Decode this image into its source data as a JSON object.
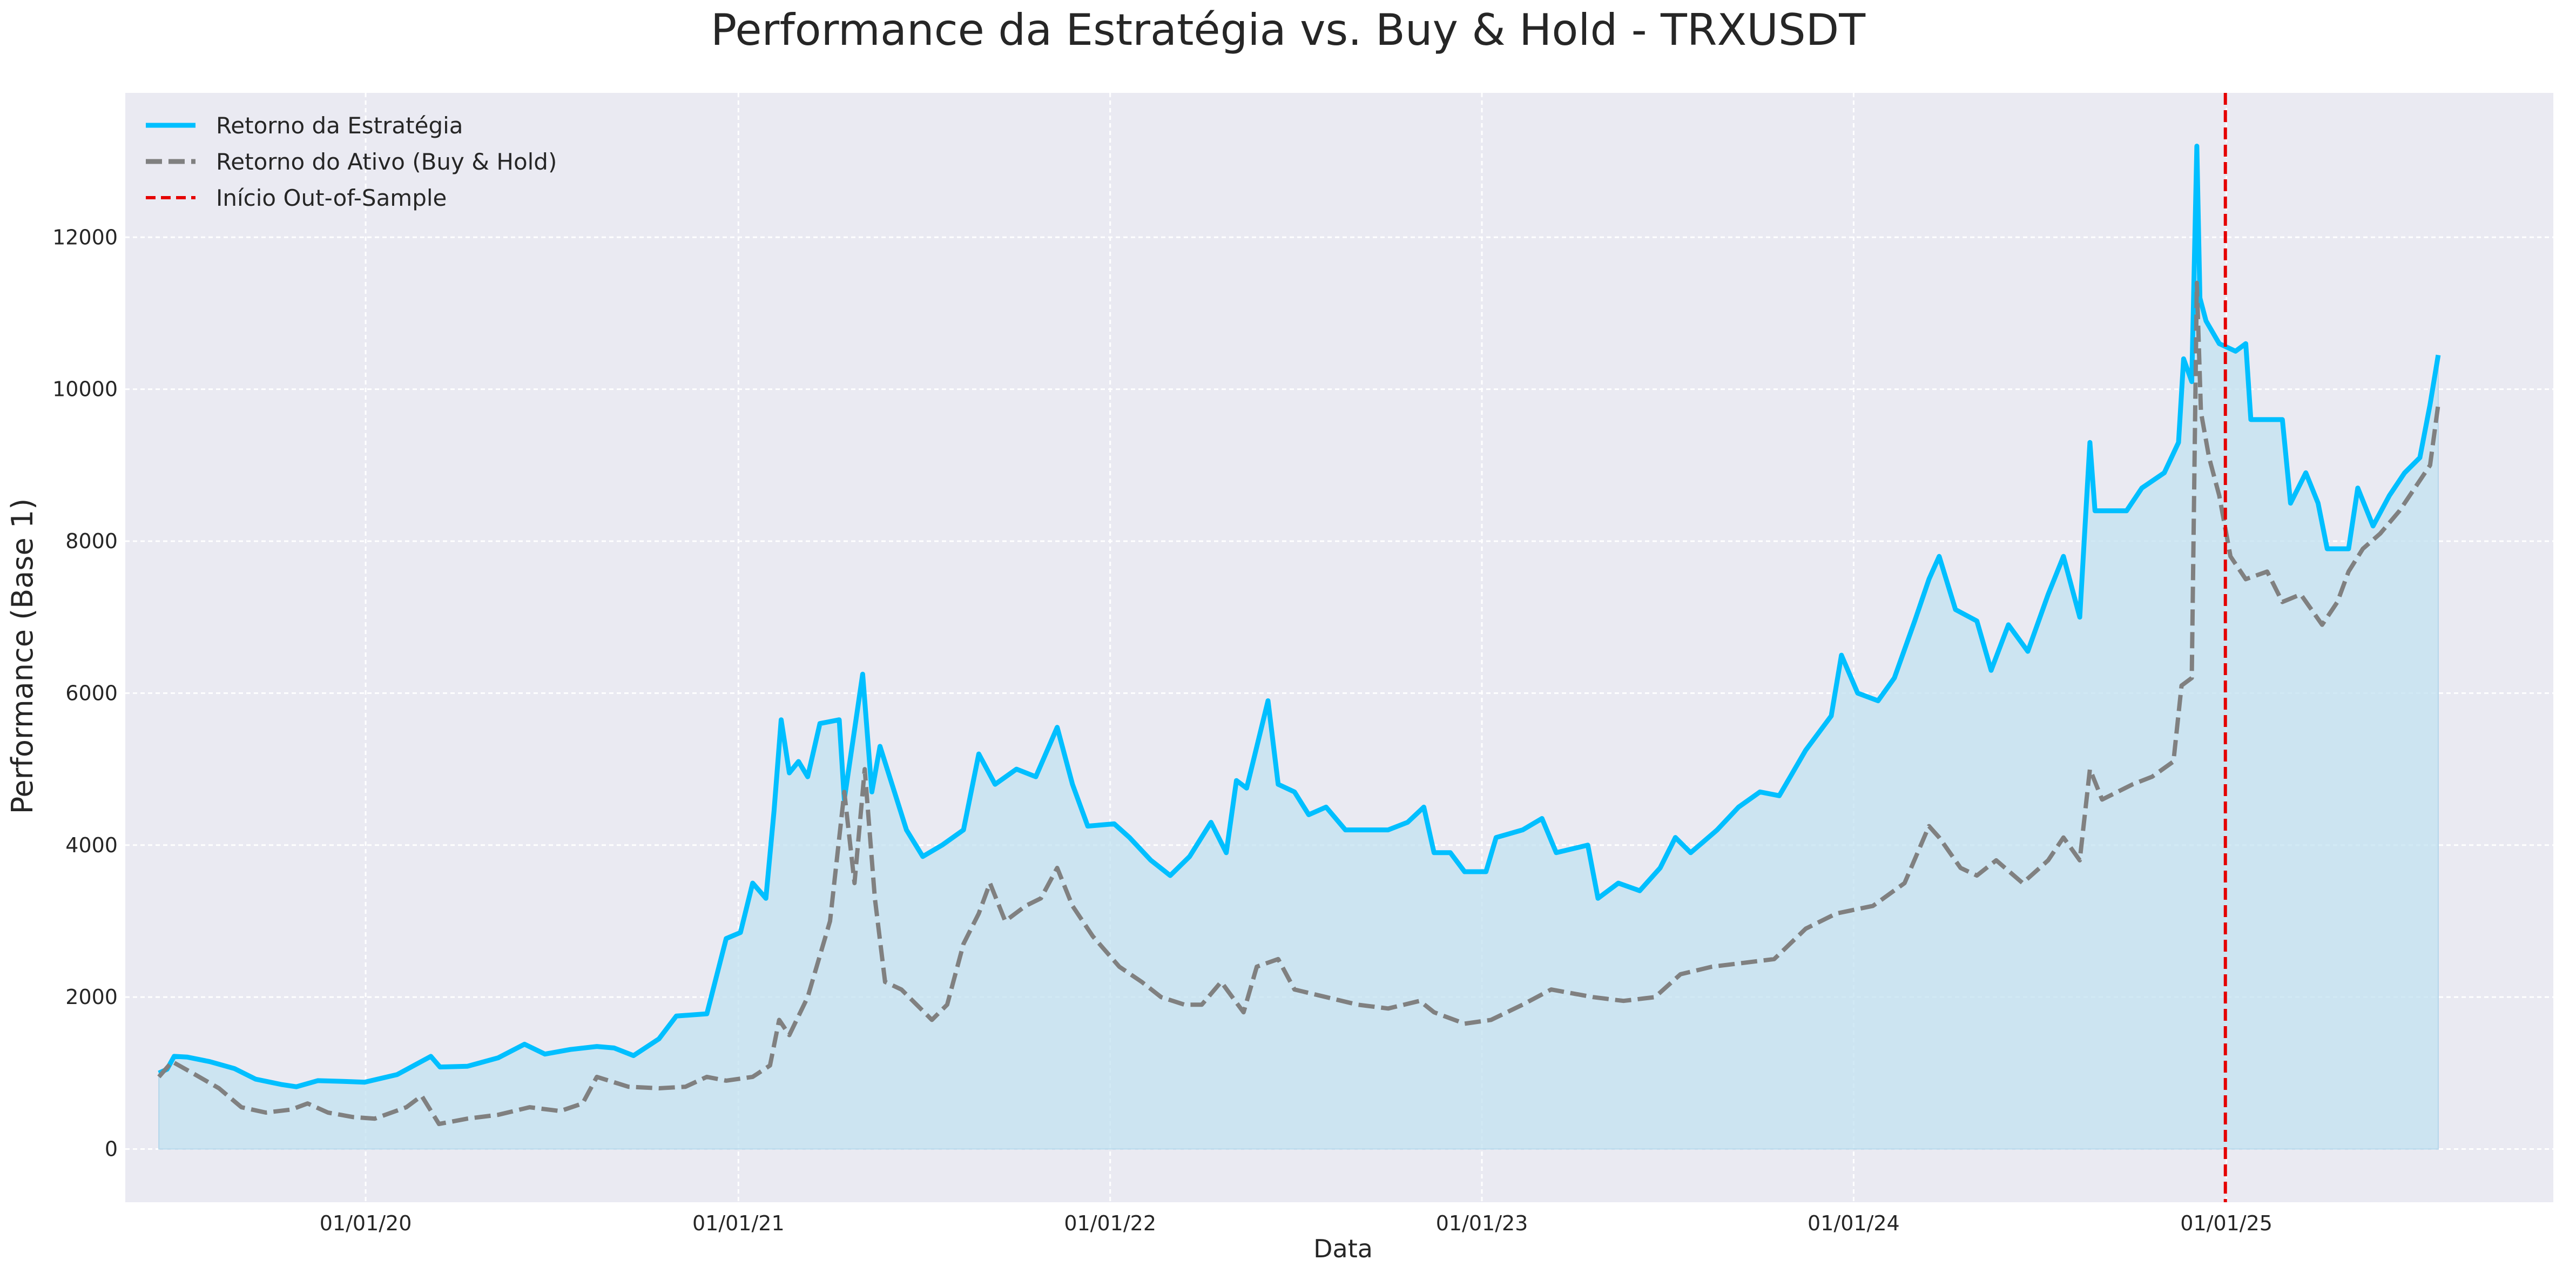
{
  "chart_data": {
    "type": "line",
    "title": "Performance da Estratégia vs. Buy & Hold - TRXUSDT",
    "xlabel": "Data",
    "ylabel": "Performance (Base 1)",
    "x_range": [
      "2019-05-10",
      "2025-11-18"
    ],
    "ylim": [
      -700,
      13900
    ],
    "x_ticks": [
      {
        "date": "2020-01-01",
        "label": "01/01/20"
      },
      {
        "date": "2021-01-01",
        "label": "01/01/21"
      },
      {
        "date": "2022-01-01",
        "label": "01/01/22"
      },
      {
        "date": "2023-01-01",
        "label": "01/01/23"
      },
      {
        "date": "2024-01-01",
        "label": "01/01/24"
      },
      {
        "date": "2025-01-01",
        "label": "01/01/25"
      }
    ],
    "y_ticks": [
      0,
      2000,
      4000,
      6000,
      8000,
      10000,
      12000
    ],
    "grid": true,
    "legend_position": "top-left",
    "background_color": "#eaeaf2",
    "series": [
      {
        "name": "Retorno da Estratégia",
        "color": "#00bfff",
        "style": "solid",
        "fill": "#c2e1f0",
        "points": [
          [
            "2019-06-12",
            1000
          ],
          [
            "2019-06-20",
            1050
          ],
          [
            "2019-06-27",
            1220
          ],
          [
            "2019-07-10",
            1210
          ],
          [
            "2019-08-01",
            1150
          ],
          [
            "2019-08-25",
            1060
          ],
          [
            "2019-09-15",
            920
          ],
          [
            "2019-10-10",
            850
          ],
          [
            "2019-10-25",
            820
          ],
          [
            "2019-11-15",
            900
          ],
          [
            "2019-12-10",
            890
          ],
          [
            "2019-12-31",
            880
          ],
          [
            "2020-02-01",
            980
          ],
          [
            "2020-03-05",
            1220
          ],
          [
            "2020-03-14",
            1080
          ],
          [
            "2020-04-10",
            1090
          ],
          [
            "2020-05-10",
            1200
          ],
          [
            "2020-06-05",
            1380
          ],
          [
            "2020-06-25",
            1250
          ],
          [
            "2020-07-20",
            1310
          ],
          [
            "2020-08-15",
            1350
          ],
          [
            "2020-09-01",
            1330
          ],
          [
            "2020-09-20",
            1230
          ],
          [
            "2020-10-15",
            1450
          ],
          [
            "2020-11-01",
            1750
          ],
          [
            "2020-12-01",
            1780
          ],
          [
            "2020-12-20",
            2770
          ],
          [
            "2021-01-03",
            2850
          ],
          [
            "2021-01-15",
            3500
          ],
          [
            "2021-01-28",
            3300
          ],
          [
            "2021-02-05",
            4450
          ],
          [
            "2021-02-12",
            5650
          ],
          [
            "2021-02-20",
            4950
          ],
          [
            "2021-03-01",
            5100
          ],
          [
            "2021-03-10",
            4900
          ],
          [
            "2021-03-22",
            5600
          ],
          [
            "2021-04-10",
            5650
          ],
          [
            "2021-04-15",
            4600
          ],
          [
            "2021-05-03",
            6250
          ],
          [
            "2021-05-12",
            4700
          ],
          [
            "2021-05-20",
            5300
          ],
          [
            "2021-06-15",
            4200
          ],
          [
            "2021-07-01",
            3850
          ],
          [
            "2021-07-20",
            4000
          ],
          [
            "2021-08-10",
            4200
          ],
          [
            "2021-08-25",
            5200
          ],
          [
            "2021-09-10",
            4800
          ],
          [
            "2021-10-01",
            5000
          ],
          [
            "2021-10-20",
            4900
          ],
          [
            "2021-11-10",
            5550
          ],
          [
            "2021-11-25",
            4800
          ],
          [
            "2021-12-10",
            4250
          ],
          [
            "2022-01-05",
            4280
          ],
          [
            "2022-01-20",
            4100
          ],
          [
            "2022-02-10",
            3800
          ],
          [
            "2022-03-01",
            3600
          ],
          [
            "2022-03-20",
            3850
          ],
          [
            "2022-04-10",
            4300
          ],
          [
            "2022-04-25",
            3900
          ],
          [
            "2022-05-05",
            4850
          ],
          [
            "2022-05-15",
            4750
          ],
          [
            "2022-06-05",
            5900
          ],
          [
            "2022-06-15",
            4800
          ],
          [
            "2022-07-01",
            4700
          ],
          [
            "2022-07-15",
            4400
          ],
          [
            "2022-08-01",
            4500
          ],
          [
            "2022-08-20",
            4200
          ],
          [
            "2022-10-01",
            4200
          ],
          [
            "2022-10-20",
            4300
          ],
          [
            "2022-11-05",
            4500
          ],
          [
            "2022-11-15",
            3900
          ],
          [
            "2022-12-01",
            3900
          ],
          [
            "2022-12-15",
            3650
          ],
          [
            "2023-01-05",
            3650
          ],
          [
            "2023-01-15",
            4100
          ],
          [
            "2023-02-10",
            4200
          ],
          [
            "2023-03-01",
            4350
          ],
          [
            "2023-03-15",
            3900
          ],
          [
            "2023-04-15",
            4000
          ],
          [
            "2023-04-25",
            3300
          ],
          [
            "2023-05-15",
            3500
          ],
          [
            "2023-06-05",
            3400
          ],
          [
            "2023-06-25",
            3700
          ],
          [
            "2023-07-10",
            4100
          ],
          [
            "2023-07-25",
            3900
          ],
          [
            "2023-08-20",
            4200
          ],
          [
            "2023-09-10",
            4500
          ],
          [
            "2023-10-01",
            4700
          ],
          [
            "2023-10-20",
            4650
          ],
          [
            "2023-11-15",
            5250
          ],
          [
            "2023-12-10",
            5700
          ],
          [
            "2023-12-20",
            6500
          ],
          [
            "2024-01-05",
            6000
          ],
          [
            "2024-01-25",
            5900
          ],
          [
            "2024-02-10",
            6200
          ],
          [
            "2024-03-01",
            6950
          ],
          [
            "2024-03-15",
            7500
          ],
          [
            "2024-03-25",
            7800
          ],
          [
            "2024-04-10",
            7100
          ],
          [
            "2024-05-01",
            6950
          ],
          [
            "2024-05-15",
            6300
          ],
          [
            "2024-06-01",
            6900
          ],
          [
            "2024-06-20",
            6550
          ],
          [
            "2024-07-10",
            7300
          ],
          [
            "2024-07-25",
            7800
          ],
          [
            "2024-08-10",
            7000
          ],
          [
            "2024-08-20",
            9300
          ],
          [
            "2024-08-25",
            8400
          ],
          [
            "2024-09-25",
            8400
          ],
          [
            "2024-10-10",
            8700
          ],
          [
            "2024-11-01",
            8900
          ],
          [
            "2024-11-15",
            9300
          ],
          [
            "2024-11-20",
            10400
          ],
          [
            "2024-11-28",
            10100
          ],
          [
            "2024-12-03",
            13200
          ],
          [
            "2024-12-06",
            11200
          ],
          [
            "2024-12-12",
            10900
          ],
          [
            "2024-12-25",
            10600
          ],
          [
            "2025-01-10",
            10500
          ],
          [
            "2025-01-20",
            10600
          ],
          [
            "2025-01-25",
            9600
          ],
          [
            "2025-02-25",
            9600
          ],
          [
            "2025-03-05",
            8500
          ],
          [
            "2025-03-20",
            8900
          ],
          [
            "2025-04-01",
            8500
          ],
          [
            "2025-04-10",
            7900
          ],
          [
            "2025-05-01",
            7900
          ],
          [
            "2025-05-10",
            8700
          ],
          [
            "2025-05-25",
            8200
          ],
          [
            "2025-06-10",
            8600
          ],
          [
            "2025-06-25",
            8900
          ],
          [
            "2025-07-10",
            9100
          ],
          [
            "2025-07-20",
            9800
          ],
          [
            "2025-07-28",
            10450
          ]
        ]
      },
      {
        "name": "Retorno do Ativo (Buy & Hold)",
        "color": "#808080",
        "style": "dashed",
        "points": [
          [
            "2019-06-12",
            950
          ],
          [
            "2019-06-25",
            1150
          ],
          [
            "2019-07-15",
            1000
          ],
          [
            "2019-08-10",
            800
          ],
          [
            "2019-09-01",
            550
          ],
          [
            "2019-09-25",
            480
          ],
          [
            "2019-10-20",
            520
          ],
          [
            "2019-11-05",
            600
          ],
          [
            "2019-11-25",
            480
          ],
          [
            "2019-12-20",
            420
          ],
          [
            "2020-01-10",
            400
          ],
          [
            "2020-02-10",
            550
          ],
          [
            "2020-02-25",
            700
          ],
          [
            "2020-03-13",
            330
          ],
          [
            "2020-04-10",
            400
          ],
          [
            "2020-05-10",
            450
          ],
          [
            "2020-06-10",
            550
          ],
          [
            "2020-07-10",
            500
          ],
          [
            "2020-08-01",
            600
          ],
          [
            "2020-08-15",
            950
          ],
          [
            "2020-09-15",
            820
          ],
          [
            "2020-10-15",
            800
          ],
          [
            "2020-11-10",
            820
          ],
          [
            "2020-12-01",
            950
          ],
          [
            "2020-12-20",
            900
          ],
          [
            "2021-01-15",
            950
          ],
          [
            "2021-02-01",
            1100
          ],
          [
            "2021-02-10",
            1700
          ],
          [
            "2021-02-20",
            1500
          ],
          [
            "2021-03-10",
            2000
          ],
          [
            "2021-04-01",
            3000
          ],
          [
            "2021-04-15",
            4700
          ],
          [
            "2021-04-25",
            3500
          ],
          [
            "2021-05-05",
            5000
          ],
          [
            "2021-05-15",
            3300
          ],
          [
            "2021-05-25",
            2200
          ],
          [
            "2021-06-10",
            2100
          ],
          [
            "2021-07-10",
            1700
          ],
          [
            "2021-07-25",
            1900
          ],
          [
            "2021-08-10",
            2700
          ],
          [
            "2021-08-25",
            3100
          ],
          [
            "2021-09-05",
            3500
          ],
          [
            "2021-09-20",
            3000
          ],
          [
            "2021-10-10",
            3200
          ],
          [
            "2021-10-25",
            3300
          ],
          [
            "2021-11-10",
            3700
          ],
          [
            "2021-11-25",
            3200
          ],
          [
            "2021-12-15",
            2800
          ],
          [
            "2022-01-10",
            2400
          ],
          [
            "2022-02-01",
            2200
          ],
          [
            "2022-02-20",
            2000
          ],
          [
            "2022-03-15",
            1900
          ],
          [
            "2022-04-01",
            1900
          ],
          [
            "2022-04-20",
            2200
          ],
          [
            "2022-05-12",
            1800
          ],
          [
            "2022-05-25",
            2400
          ],
          [
            "2022-06-15",
            2500
          ],
          [
            "2022-07-01",
            2100
          ],
          [
            "2022-08-01",
            2000
          ],
          [
            "2022-09-01",
            1900
          ],
          [
            "2022-10-01",
            1850
          ],
          [
            "2022-11-01",
            1950
          ],
          [
            "2022-11-15",
            1800
          ],
          [
            "2022-12-15",
            1650
          ],
          [
            "2023-01-10",
            1700
          ],
          [
            "2023-02-10",
            1900
          ],
          [
            "2023-03-10",
            2100
          ],
          [
            "2023-04-20",
            2000
          ],
          [
            "2023-05-20",
            1950
          ],
          [
            "2023-06-20",
            2000
          ],
          [
            "2023-07-15",
            2300
          ],
          [
            "2023-08-15",
            2400
          ],
          [
            "2023-09-15",
            2450
          ],
          [
            "2023-10-15",
            2500
          ],
          [
            "2023-11-15",
            2900
          ],
          [
            "2023-12-15",
            3100
          ],
          [
            "2024-01-20",
            3200
          ],
          [
            "2024-02-20",
            3500
          ],
          [
            "2024-03-15",
            4250
          ],
          [
            "2024-03-25",
            4100
          ],
          [
            "2024-04-15",
            3700
          ],
          [
            "2024-05-01",
            3600
          ],
          [
            "2024-05-20",
            3800
          ],
          [
            "2024-06-15",
            3500
          ],
          [
            "2024-07-10",
            3800
          ],
          [
            "2024-07-25",
            4100
          ],
          [
            "2024-08-10",
            3800
          ],
          [
            "2024-08-20",
            5000
          ],
          [
            "2024-09-01",
            4600
          ],
          [
            "2024-10-01",
            4800
          ],
          [
            "2024-10-20",
            4900
          ],
          [
            "2024-11-10",
            5100
          ],
          [
            "2024-11-18",
            6100
          ],
          [
            "2024-11-28",
            6200
          ],
          [
            "2024-12-03",
            11400
          ],
          [
            "2024-12-07",
            9700
          ],
          [
            "2024-12-15",
            9100
          ],
          [
            "2024-12-25",
            8600
          ],
          [
            "2025-01-05",
            7800
          ],
          [
            "2025-01-20",
            7500
          ],
          [
            "2025-02-10",
            7600
          ],
          [
            "2025-02-25",
            7200
          ],
          [
            "2025-03-15",
            7300
          ],
          [
            "2025-04-05",
            6900
          ],
          [
            "2025-04-20",
            7200
          ],
          [
            "2025-05-01",
            7600
          ],
          [
            "2025-05-15",
            7900
          ],
          [
            "2025-06-01",
            8100
          ],
          [
            "2025-06-20",
            8400
          ],
          [
            "2025-07-05",
            8700
          ],
          [
            "2025-07-20",
            9000
          ],
          [
            "2025-07-28",
            9800
          ]
        ]
      }
    ],
    "annotations": [
      {
        "type": "vline",
        "date": "2024-12-31",
        "label": "Início Out-of-Sample",
        "color": "#e50000",
        "style": "dashed"
      }
    ]
  }
}
